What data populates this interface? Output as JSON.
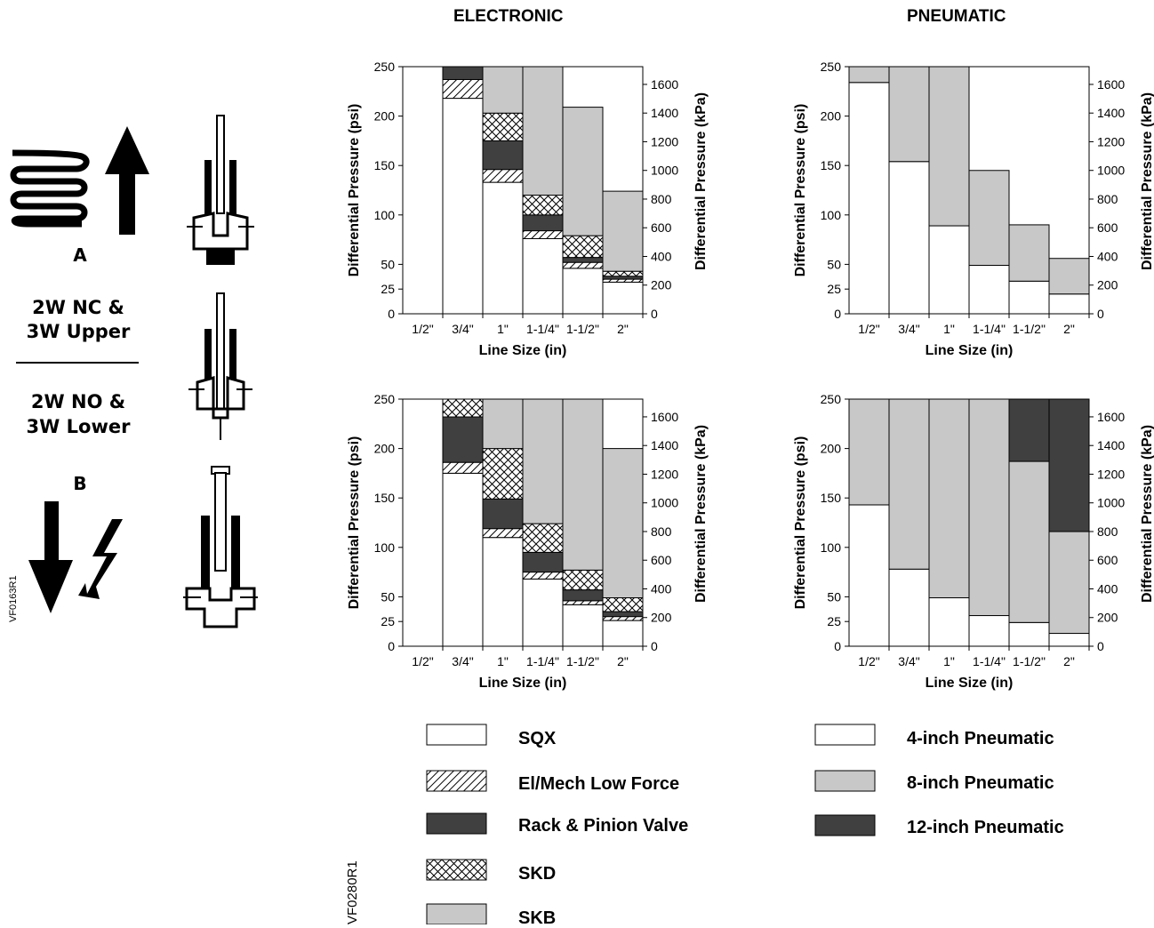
{
  "headers": {
    "electronic": "ELECTRONIC",
    "pneumatic": "PNEUMATIC"
  },
  "left_panel": {
    "label_a": "A",
    "label_b": "B",
    "nc_line1": "2W NC &",
    "nc_line2": "3W Upper",
    "no_line1": "2W NO &",
    "no_line2": "3W Lower",
    "code": "VF0163R1"
  },
  "figure_code": "VF0280R1",
  "colors": {
    "SQX": "#ffffff",
    "ElMech": "hatch-diagonal",
    "Rack": "#404040",
    "SKD": "crosshatch",
    "SKB": "#c8c8c8",
    "P4": "#ffffff",
    "P8": "#c8c8c8",
    "P12": "#404040"
  },
  "legend_electronic": [
    {
      "key": "SQX",
      "label": "SQX"
    },
    {
      "key": "ElMech",
      "label": "El/Mech Low Force"
    },
    {
      "key": "Rack",
      "label": "Rack & Pinion Valve"
    },
    {
      "key": "SKD",
      "label": "SKD"
    },
    {
      "key": "SKB",
      "label": "SKB"
    }
  ],
  "legend_pneumatic": [
    {
      "key": "P4",
      "label": "4-inch Pneumatic"
    },
    {
      "key": "P8",
      "label": "8-inch Pneumatic"
    },
    {
      "key": "P12",
      "label": "12-inch Pneumatic"
    }
  ],
  "chart_data": [
    {
      "type": "bar",
      "group": "ELECTRONIC",
      "valve": "A",
      "categories": [
        "1/2\"",
        "3/4\"",
        "1\"",
        "1-1/4\"",
        "1-1/2\"",
        "2\""
      ],
      "xlabel": "Line Size (in)",
      "ylabel": "Differential Pressure (psi)",
      "ylabel2": "Differential Pressure (kPa)",
      "ylim": [
        0,
        250
      ],
      "yticks": [
        0,
        25,
        50,
        100,
        150,
        200,
        250
      ],
      "y2ticks": [
        0,
        200,
        400,
        600,
        800,
        1000,
        1200,
        1400,
        1600
      ],
      "stack_order": [
        "SQX",
        "ElMech",
        "Rack",
        "SKD",
        "SKB"
      ],
      "bars": [
        {
          "category": "1/2\"",
          "values": {
            "SQX": 0,
            "ElMech": 0,
            "Rack": 0,
            "SKD": 0,
            "SKB": 0
          }
        },
        {
          "category": "3/4\"",
          "values": {
            "SQX": 218,
            "ElMech": 237,
            "Rack": 250,
            "SKD": 250,
            "SKB": 250
          }
        },
        {
          "category": "1\"",
          "values": {
            "SQX": 133,
            "ElMech": 146,
            "Rack": 175,
            "SKD": 203,
            "SKB": 250
          }
        },
        {
          "category": "1-1/4\"",
          "values": {
            "SQX": 76,
            "ElMech": 84,
            "Rack": 100,
            "SKD": 120,
            "SKB": 250
          }
        },
        {
          "category": "1-1/2\"",
          "values": {
            "SQX": 46,
            "ElMech": 52,
            "Rack": 57,
            "SKD": 79,
            "SKB": 209
          }
        },
        {
          "category": "2\"",
          "values": {
            "SQX": 32,
            "ElMech": 35,
            "Rack": 38,
            "SKD": 43,
            "SKB": 124
          }
        }
      ]
    },
    {
      "type": "bar",
      "group": "PNEUMATIC",
      "valve": "A",
      "categories": [
        "1/2\"",
        "3/4\"",
        "1\"",
        "1-1/4\"",
        "1-1/2\"",
        "2\""
      ],
      "xlabel": "Line Size (in)",
      "ylabel": "Differential Pressure (psi)",
      "ylabel2": "Differential Pressure (kPa)",
      "ylim": [
        0,
        250
      ],
      "yticks": [
        0,
        25,
        50,
        100,
        150,
        200,
        250
      ],
      "y2ticks": [
        0,
        200,
        400,
        600,
        800,
        1000,
        1200,
        1400,
        1600
      ],
      "stack_order": [
        "P4",
        "P8",
        "P12"
      ],
      "bars": [
        {
          "category": "1/2\"",
          "values": {
            "P4": 234,
            "P8": 250,
            "P12": 250
          }
        },
        {
          "category": "3/4\"",
          "values": {
            "P4": 154,
            "P8": 250,
            "P12": 250
          }
        },
        {
          "category": "1\"",
          "values": {
            "P4": 89,
            "P8": 250,
            "P12": 250
          }
        },
        {
          "category": "1-1/4\"",
          "values": {
            "P4": 49,
            "P8": 145,
            "P12": 145
          }
        },
        {
          "category": "1-1/2\"",
          "values": {
            "P4": 33,
            "P8": 90,
            "P12": 90
          }
        },
        {
          "category": "2\"",
          "values": {
            "P4": 20,
            "P8": 56,
            "P12": 56
          }
        }
      ]
    },
    {
      "type": "bar",
      "group": "ELECTRONIC",
      "valve": "B",
      "categories": [
        "1/2\"",
        "3/4\"",
        "1\"",
        "1-1/4\"",
        "1-1/2\"",
        "2\""
      ],
      "xlabel": "Line Size (in)",
      "ylabel": "Differential Pressure (psi)",
      "ylabel2": "Differential Pressure (kPa)",
      "ylim": [
        0,
        250
      ],
      "yticks": [
        0,
        25,
        50,
        100,
        150,
        200,
        250
      ],
      "y2ticks": [
        0,
        200,
        400,
        600,
        800,
        1000,
        1200,
        1400,
        1600
      ],
      "stack_order": [
        "SQX",
        "ElMech",
        "Rack",
        "SKD",
        "SKB"
      ],
      "bars": [
        {
          "category": "1/2\"",
          "values": {
            "SQX": 0,
            "ElMech": 0,
            "Rack": 0,
            "SKD": 0,
            "SKB": 0
          }
        },
        {
          "category": "3/4\"",
          "values": {
            "SQX": 175,
            "ElMech": 186,
            "Rack": 232,
            "SKD": 250,
            "SKB": 250
          }
        },
        {
          "category": "1\"",
          "values": {
            "SQX": 110,
            "ElMech": 119,
            "Rack": 149,
            "SKD": 200,
            "SKB": 250
          }
        },
        {
          "category": "1-1/4\"",
          "values": {
            "SQX": 68,
            "ElMech": 75,
            "Rack": 95,
            "SKD": 124,
            "SKB": 250
          }
        },
        {
          "category": "1-1/2\"",
          "values": {
            "SQX": 42,
            "ElMech": 46,
            "Rack": 57,
            "SKD": 77,
            "SKB": 250
          }
        },
        {
          "category": "2\"",
          "values": {
            "SQX": 26,
            "ElMech": 30,
            "Rack": 35,
            "SKD": 49,
            "SKB": 200
          }
        }
      ]
    },
    {
      "type": "bar",
      "group": "PNEUMATIC",
      "valve": "B",
      "categories": [
        "1/2\"",
        "3/4\"",
        "1\"",
        "1-1/4\"",
        "1-1/2\"",
        "2\""
      ],
      "xlabel": "Line Size (in)",
      "ylabel": "Differential Pressure (psi)",
      "ylabel2": "Differential Pressure (kPa)",
      "ylim": [
        0,
        250
      ],
      "yticks": [
        0,
        25,
        50,
        100,
        150,
        200,
        250
      ],
      "y2ticks": [
        0,
        200,
        400,
        600,
        800,
        1000,
        1200,
        1400,
        1600
      ],
      "stack_order": [
        "P4",
        "P8",
        "P12"
      ],
      "bars": [
        {
          "category": "1/2\"",
          "values": {
            "P4": 143,
            "P8": 250,
            "P12": 250
          }
        },
        {
          "category": "3/4\"",
          "values": {
            "P4": 78,
            "P8": 250,
            "P12": 250
          }
        },
        {
          "category": "1\"",
          "values": {
            "P4": 49,
            "P8": 250,
            "P12": 250
          }
        },
        {
          "category": "1-1/4\"",
          "values": {
            "P4": 31,
            "P8": 250,
            "P12": 250
          }
        },
        {
          "category": "1-1/2\"",
          "values": {
            "P4": 24,
            "P8": 187,
            "P12": 250
          }
        },
        {
          "category": "2\"",
          "values": {
            "P4": 13,
            "P8": 116,
            "P12": 250
          }
        }
      ]
    }
  ]
}
